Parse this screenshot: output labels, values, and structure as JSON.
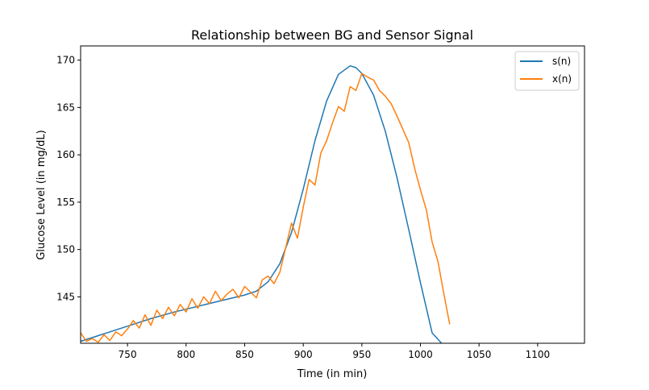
{
  "chart_data": {
    "type": "line",
    "title": "Relationship between BG and Sensor Signal",
    "xlabel": "Time (in min)",
    "ylabel": "Glucose Level (in mg/dL)",
    "xlim": [
      710,
      1140
    ],
    "ylim": [
      140.1,
      171.5
    ],
    "xticks": [
      750,
      800,
      850,
      900,
      950,
      1000,
      1050,
      1100
    ],
    "yticks": [
      145,
      150,
      155,
      160,
      165,
      170
    ],
    "grid": false,
    "legend": {
      "position": "top-right",
      "entries": [
        "s(n)",
        "x(n)"
      ]
    },
    "series": [
      {
        "name": "s(n)",
        "color": "#1f77b4",
        "x": [
          710,
          730,
          750,
          770,
          790,
          810,
          830,
          850,
          860,
          870,
          880,
          890,
          900,
          910,
          920,
          930,
          940,
          945,
          950,
          960,
          970,
          980,
          990,
          1000,
          1010,
          1018
        ],
        "y": [
          140.3,
          141.1,
          141.9,
          142.7,
          143.4,
          144.0,
          144.6,
          145.2,
          145.6,
          146.6,
          148.5,
          151.8,
          156.4,
          161.5,
          165.7,
          168.5,
          169.4,
          169.2,
          168.6,
          166.3,
          162.5,
          157.6,
          152.1,
          146.5,
          141.2,
          140.1
        ]
      },
      {
        "name": "x(n)",
        "color": "#ff7f0e",
        "x": [
          710,
          715,
          720,
          725,
          730,
          735,
          740,
          745,
          750,
          755,
          760,
          765,
          770,
          775,
          780,
          785,
          790,
          795,
          800,
          805,
          810,
          815,
          820,
          825,
          830,
          835,
          840,
          845,
          850,
          855,
          860,
          865,
          870,
          875,
          880,
          885,
          890,
          895,
          900,
          905,
          910,
          915,
          920,
          925,
          930,
          935,
          940,
          945,
          950,
          955,
          960,
          965,
          970,
          975,
          980,
          985,
          990,
          995,
          1000,
          1005,
          1010,
          1015,
          1020,
          1025
        ],
        "y": [
          141.2,
          140.3,
          140.6,
          140.2,
          141.0,
          140.4,
          141.3,
          140.9,
          141.6,
          142.5,
          141.7,
          143.1,
          142.0,
          143.6,
          142.7,
          143.9,
          143.0,
          144.2,
          143.4,
          144.8,
          143.8,
          145.0,
          144.3,
          145.6,
          144.6,
          145.3,
          145.8,
          144.9,
          146.1,
          145.5,
          144.9,
          146.8,
          147.2,
          146.4,
          147.6,
          150.2,
          152.8,
          151.2,
          154.5,
          157.4,
          156.8,
          160.2,
          161.5,
          163.4,
          165.1,
          164.6,
          167.2,
          166.8,
          168.6,
          168.2,
          167.9,
          166.8,
          166.2,
          165.4,
          164.1,
          162.7,
          161.3,
          158.6,
          156.3,
          154.2,
          150.8,
          148.7,
          145.3,
          142.1
        ]
      }
    ]
  }
}
